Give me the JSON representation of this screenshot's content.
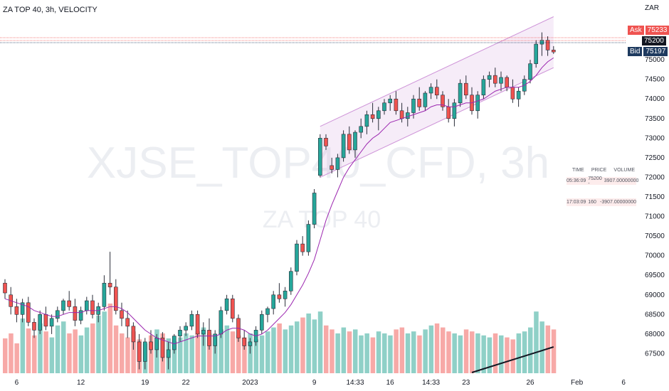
{
  "header": {
    "title": "ZA TOP 40, 3h, VELOCITY"
  },
  "watermark": {
    "main": "XJSE_TOP40_CFD, 3h",
    "sub": "ZA TOP 40"
  },
  "quote": {
    "currency": "ZAR",
    "ask_label": "Ask",
    "ask_value": "75233",
    "last_value": "75200",
    "bid_label": "Bid",
    "bid_value": "75197"
  },
  "trade_table": {
    "headers": [
      "TIME",
      "PRICE",
      "VOLUME"
    ],
    "rows": [
      {
        "time": "05:36:09",
        "price": "75200 -",
        "volume": "3907.00000000"
      },
      {
        "time": "17:03:09",
        "price": "160",
        "volume": "-3907.00000000"
      }
    ]
  },
  "colors": {
    "up": "#26a69a",
    "down": "#ef5350",
    "up_vol": "#8fd0c7",
    "down_vol": "#f7a9a7",
    "ma": "#9c27b0",
    "channel": "#ce93d8",
    "ask": "#ef5350",
    "bid": "#1e3a5f"
  },
  "chart_data": {
    "type": "candlestick",
    "y_ticks": [
      "75000",
      "74500",
      "74000",
      "73500",
      "73000",
      "72500",
      "72000",
      "71500",
      "71000",
      "70500",
      "70000",
      "69500",
      "69000",
      "68500",
      "68000",
      "67500"
    ],
    "ylim": [
      67000,
      76200
    ],
    "x_ticks": [
      {
        "label": "6",
        "index": 2
      },
      {
        "label": "12",
        "index": 13
      },
      {
        "label": "19",
        "index": 24
      },
      {
        "label": "22",
        "index": 31
      },
      {
        "label": "2023",
        "index": 42
      },
      {
        "label": "9",
        "index": 53
      },
      {
        "label": "14:33",
        "index": 60
      },
      {
        "label": "16",
        "index": 66
      },
      {
        "label": "14:33",
        "index": 73
      },
      {
        "label": "23",
        "index": 79
      },
      {
        "label": "26",
        "index": 90
      },
      {
        "label": "Feb",
        "index": 98
      },
      {
        "label": "6",
        "index": 106
      }
    ],
    "candles": [
      [
        69300,
        69400,
        68900,
        69050
      ],
      [
        69000,
        69200,
        68500,
        68700
      ],
      [
        68700,
        68900,
        68300,
        68500
      ],
      [
        68500,
        68900,
        68300,
        68800
      ],
      [
        68800,
        68950,
        68200,
        68300
      ],
      [
        68300,
        68400,
        67900,
        68100
      ],
      [
        68100,
        68600,
        68000,
        68500
      ],
      [
        68500,
        68700,
        68100,
        68200
      ],
      [
        68200,
        68500,
        68000,
        68400
      ],
      [
        68400,
        68700,
        68300,
        68600
      ],
      [
        68600,
        68900,
        68500,
        68850
      ],
      [
        68850,
        69100,
        68600,
        68700
      ],
      [
        68700,
        68900,
        68200,
        68350
      ],
      [
        68350,
        68700,
        68250,
        68600
      ],
      [
        68600,
        68950,
        68500,
        68850
      ],
      [
        68850,
        69000,
        68400,
        68500
      ],
      [
        68500,
        68800,
        68300,
        68700
      ],
      [
        68700,
        69500,
        68600,
        69300
      ],
      [
        69300,
        70100,
        69000,
        69200
      ],
      [
        69200,
        69400,
        68500,
        68600
      ],
      [
        68600,
        68800,
        68200,
        68400
      ],
      [
        68400,
        68600,
        67900,
        68200
      ],
      [
        68200,
        68300,
        67600,
        67800
      ],
      [
        67800,
        68000,
        67100,
        67300
      ],
      [
        67300,
        67900,
        67100,
        67800
      ],
      [
        67800,
        68100,
        67500,
        67600
      ],
      [
        67600,
        68000,
        67400,
        67900
      ],
      [
        67900,
        68050,
        67300,
        67400
      ],
      [
        67400,
        67800,
        67100,
        67600
      ],
      [
        67600,
        68000,
        67500,
        67950
      ],
      [
        67950,
        68200,
        67800,
        68100
      ],
      [
        68100,
        68300,
        67950,
        68200
      ],
      [
        68200,
        68600,
        68100,
        68500
      ],
      [
        68500,
        68600,
        67900,
        68000
      ],
      [
        68000,
        68300,
        67700,
        68100
      ],
      [
        68100,
        68400,
        67600,
        67700
      ],
      [
        67700,
        68100,
        67500,
        68000
      ],
      [
        68000,
        68700,
        67900,
        68600
      ],
      [
        68600,
        69000,
        68500,
        68900
      ],
      [
        68900,
        69000,
        68300,
        68400
      ],
      [
        68400,
        68500,
        67800,
        67900
      ],
      [
        67900,
        68100,
        67600,
        67700
      ],
      [
        67700,
        67900,
        67500,
        67800
      ],
      [
        67800,
        68200,
        67700,
        68100
      ],
      [
        68100,
        68600,
        68000,
        68500
      ],
      [
        68500,
        68700,
        68300,
        68650
      ],
      [
        68650,
        69100,
        68500,
        69000
      ],
      [
        69000,
        69300,
        68800,
        68900
      ],
      [
        68900,
        69200,
        68700,
        69100
      ],
      [
        69100,
        69700,
        69000,
        69600
      ],
      [
        69600,
        70400,
        69500,
        70300
      ],
      [
        70300,
        70500,
        70000,
        70100
      ],
      [
        70100,
        70900,
        70000,
        70800
      ],
      [
        70800,
        71700,
        70700,
        71600
      ],
      [
        72050,
        73100,
        72000,
        73000
      ],
      [
        73000,
        73100,
        72700,
        72800
      ],
      [
        72300,
        72500,
        72100,
        72200
      ],
      [
        72200,
        72600,
        72000,
        72500
      ],
      [
        72500,
        73200,
        72400,
        73100
      ],
      [
        73100,
        73300,
        72600,
        72700
      ],
      [
        72700,
        73200,
        72500,
        73150
      ],
      [
        73150,
        73500,
        73000,
        73300
      ],
      [
        73300,
        73700,
        73100,
        73600
      ],
      [
        73600,
        73900,
        73400,
        73500
      ],
      [
        73500,
        73800,
        73200,
        73700
      ],
      [
        73700,
        74000,
        73600,
        73900
      ],
      [
        73900,
        74100,
        73700,
        74000
      ],
      [
        74000,
        74200,
        73600,
        73700
      ],
      [
        73700,
        73900,
        73400,
        73500
      ],
      [
        73500,
        73800,
        73300,
        73650
      ],
      [
        73650,
        74100,
        73500,
        74000
      ],
      [
        74000,
        74300,
        73700,
        73800
      ],
      [
        73800,
        74200,
        73700,
        74150
      ],
      [
        74150,
        74400,
        74000,
        74300
      ],
      [
        74300,
        74500,
        74000,
        74100
      ],
      [
        74100,
        74200,
        73700,
        73800
      ],
      [
        73800,
        74000,
        73400,
        73500
      ],
      [
        73500,
        74000,
        73300,
        73900
      ],
      [
        73900,
        74500,
        73800,
        74400
      ],
      [
        74400,
        74600,
        74000,
        74100
      ],
      [
        74100,
        74300,
        73600,
        73700
      ],
      [
        73700,
        74200,
        73500,
        74100
      ],
      [
        74100,
        74600,
        74000,
        74500
      ],
      [
        74500,
        74700,
        74300,
        74600
      ],
      [
        74600,
        74800,
        74300,
        74400
      ],
      [
        74400,
        74700,
        74200,
        74550
      ],
      [
        74550,
        74600,
        74200,
        74300
      ],
      [
        74300,
        74500,
        73900,
        74000
      ],
      [
        74000,
        74300,
        73800,
        74200
      ],
      [
        74200,
        74600,
        74100,
        74500
      ],
      [
        74500,
        75000,
        74400,
        74900
      ],
      [
        74900,
        75500,
        74800,
        75400
      ],
      [
        75400,
        75700,
        75100,
        75500
      ],
      [
        75500,
        75600,
        75100,
        75250
      ],
      [
        75250,
        75350,
        75150,
        75200
      ]
    ],
    "ma": [
      68900,
      68850,
      68800,
      68750,
      68700,
      68600,
      68550,
      68500,
      68450,
      68450,
      68500,
      68550,
      68550,
      68550,
      68600,
      68600,
      68600,
      68650,
      68700,
      68700,
      68650,
      68550,
      68400,
      68250,
      68100,
      68000,
      67900,
      67850,
      67800,
      67750,
      67800,
      67850,
      67900,
      67950,
      67950,
      67950,
      67950,
      68000,
      68100,
      68150,
      68150,
      68100,
      68000,
      67950,
      68000,
      68100,
      68250,
      68400,
      68550,
      68750,
      69000,
      69250,
      69550,
      69900,
      70400,
      70900,
      71300,
      71650,
      72000,
      72250,
      72450,
      72650,
      72850,
      73000,
      73100,
      73250,
      73400,
      73450,
      73500,
      73550,
      73600,
      73650,
      73700,
      73800,
      73850,
      73850,
      73800,
      73800,
      73850,
      73900,
      73900,
      73950,
      74000,
      74100,
      74200,
      74250,
      74300,
      74300,
      74300,
      74350,
      74450,
      74600,
      74800,
      74950,
      75050
    ],
    "volume": [
      35,
      40,
      30,
      55,
      45,
      38,
      50,
      42,
      36,
      48,
      52,
      40,
      44,
      38,
      46,
      50,
      58,
      62,
      70,
      48,
      40,
      36,
      42,
      34,
      30,
      38,
      44,
      40,
      35,
      32,
      36,
      40,
      38,
      42,
      46,
      40,
      38,
      44,
      48,
      42,
      38,
      36,
      40,
      34,
      38,
      42,
      46,
      50,
      44,
      48,
      52,
      56,
      60,
      54,
      62,
      48,
      44,
      40,
      46,
      42,
      44,
      38,
      40,
      36,
      42,
      40,
      38,
      44,
      46,
      40,
      42,
      38,
      44,
      48,
      50,
      46,
      42,
      40,
      38,
      44,
      42,
      40,
      38,
      36,
      40,
      38,
      36,
      34,
      40,
      42,
      46,
      62,
      52,
      48,
      44
    ],
    "channel": {
      "upper": [
        [
          54,
          73300
        ],
        [
          94,
          76100
        ]
      ],
      "lower": [
        [
          54,
          72000
        ],
        [
          94,
          74800
        ]
      ]
    },
    "trend_line": [
      [
        80,
        67100
      ],
      [
        94,
        67750
      ]
    ]
  }
}
